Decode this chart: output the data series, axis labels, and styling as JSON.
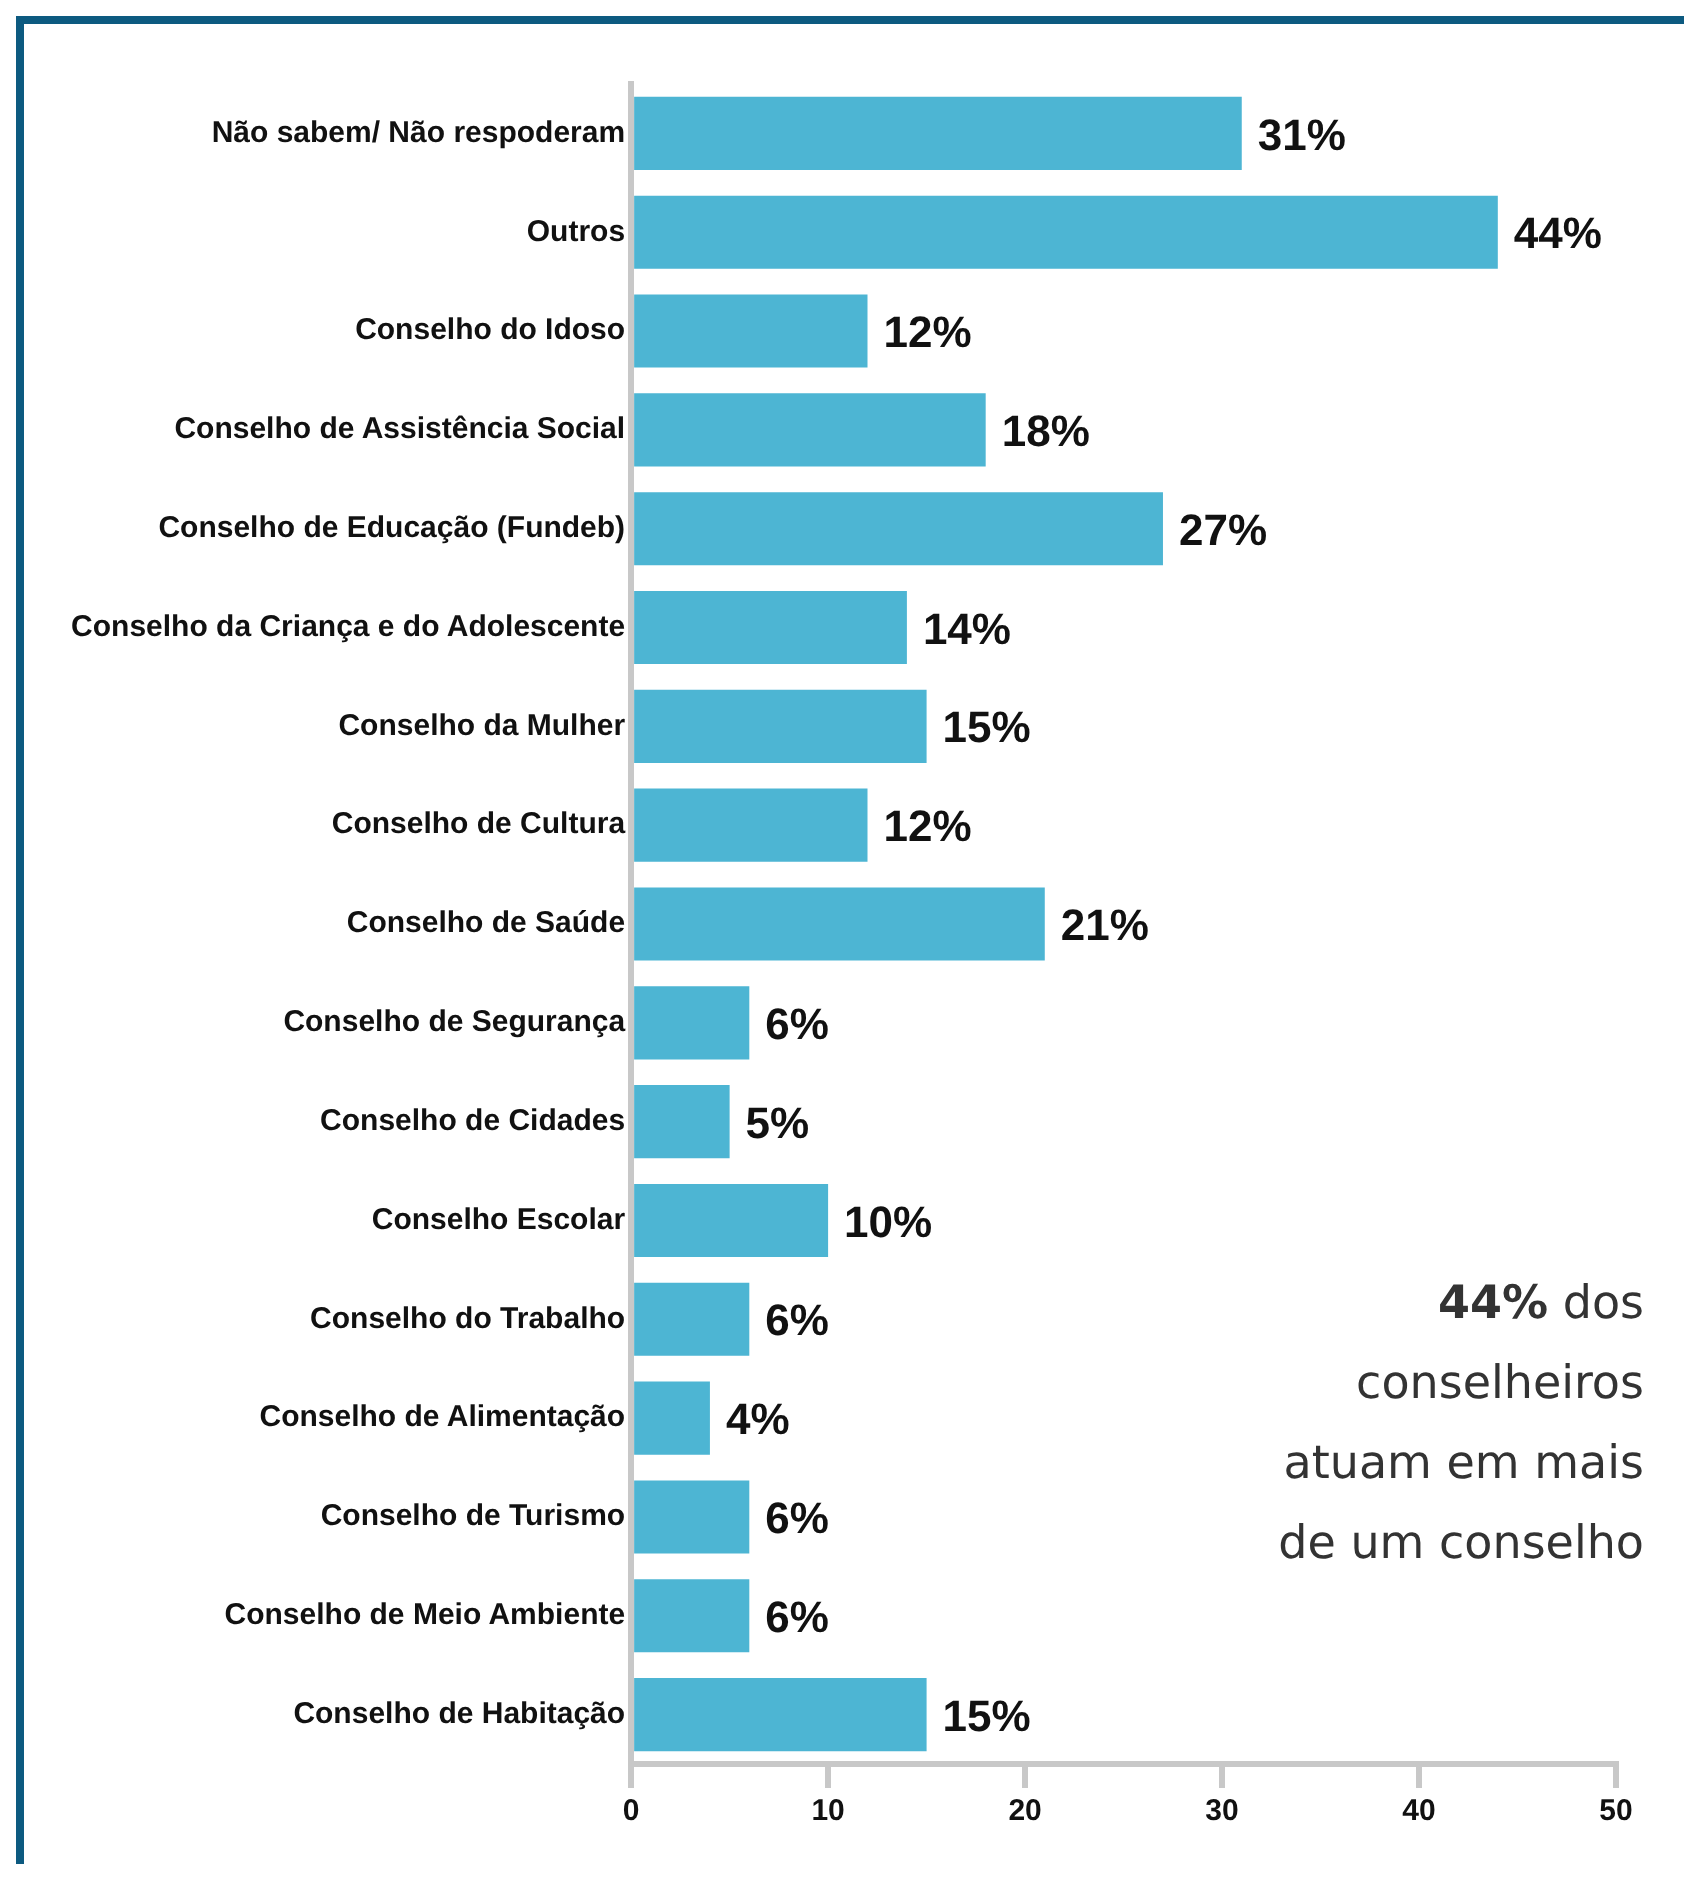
{
  "chart_data": {
    "type": "bar",
    "orientation": "horizontal",
    "categories": [
      "Não sabem/ Não respoderam",
      "Outros",
      "Conselho do Idoso",
      "Conselho de Assistência Social",
      "Conselho de Educação (Fundeb)",
      "Conselho da Criança e do Adolescente",
      "Conselho da Mulher",
      "Conselho de Cultura",
      "Conselho de Saúde",
      "Conselho de Segurança",
      "Conselho de Cidades",
      "Conselho Escolar",
      "Conselho do Trabalho",
      "Conselho de Alimentação",
      "Conselho de Turismo",
      "Conselho de Meio Ambiente",
      "Conselho de Habitação"
    ],
    "values": [
      31,
      44,
      12,
      18,
      27,
      14,
      15,
      12,
      21,
      6,
      5,
      10,
      6,
      4,
      6,
      6,
      15
    ],
    "value_labels": [
      "31%",
      "44%",
      "12%",
      "18%",
      "27%",
      "14%",
      "15%",
      "12%",
      "21%",
      "6%",
      "5%",
      "10%",
      "6%",
      "4%",
      "6%",
      "6%",
      "15%"
    ],
    "color": "#4db5d3",
    "xlim": [
      0,
      50
    ],
    "xticks": [
      0,
      10,
      20,
      30,
      40,
      50
    ],
    "grid": false,
    "annotations": [
      "44% dos conselheiros atuam em mais de um conselho"
    ]
  }
}
